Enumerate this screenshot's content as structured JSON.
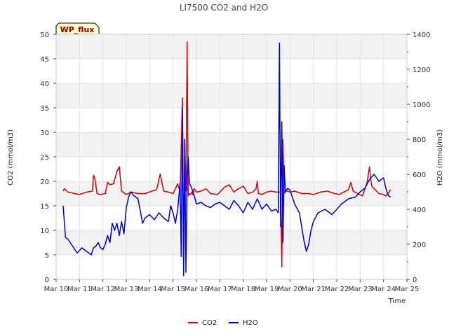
{
  "chart_data": {
    "type": "line",
    "title": "LI7500 CO2 and H2O",
    "badge": "WP_flux",
    "xlabel": "Time",
    "ylabel_left": "CO2 (mmol/m3)",
    "ylabel_right": "H2O (mmol/m3)",
    "ylim_left": [
      0,
      50
    ],
    "ylim_right": [
      0,
      1400
    ],
    "xlim": [
      10,
      25
    ],
    "x_ticks": [
      10,
      11,
      12,
      13,
      14,
      15,
      16,
      17,
      18,
      19,
      20,
      21,
      22,
      23,
      24,
      25
    ],
    "x_tick_labels": [
      "Mar 10",
      "Mar 11",
      "Mar 12",
      "Mar 13",
      "Mar 14",
      "Mar 15",
      "Mar 16",
      "Mar 17",
      "Mar 18",
      "Mar 19",
      "Mar 20",
      "Mar 21",
      "Mar 22",
      "Mar 23",
      "Mar 24",
      "Mar 25"
    ],
    "y_ticks_left": [
      0,
      5,
      10,
      15,
      20,
      25,
      30,
      35,
      40,
      45,
      50
    ],
    "y_ticks_right": [
      0,
      200,
      400,
      600,
      800,
      1000,
      1200,
      1400
    ],
    "grid": true,
    "legend_position": "bottom-center",
    "series": [
      {
        "name": "CO2",
        "axis": "left",
        "color": "#dd0000",
        "x": [
          10.3,
          10.35,
          10.5,
          10.8,
          11.0,
          11.3,
          11.55,
          11.6,
          11.65,
          11.75,
          11.9,
          12.1,
          12.2,
          12.3,
          12.45,
          12.6,
          12.7,
          12.8,
          13.0,
          13.2,
          13.5,
          13.8,
          14.1,
          14.3,
          14.45,
          14.6,
          14.8,
          15.0,
          15.1,
          15.2,
          15.3,
          15.4,
          15.45,
          15.5,
          15.55,
          15.6,
          15.65,
          15.7,
          15.75,
          15.8,
          15.85,
          15.9,
          16.0,
          16.2,
          16.4,
          16.6,
          16.9,
          17.2,
          17.4,
          17.6,
          17.8,
          18.0,
          18.2,
          18.4,
          18.55,
          18.6,
          18.65,
          18.8,
          19.0,
          19.2,
          19.4,
          19.6,
          19.65,
          19.7,
          19.75,
          19.8,
          19.85,
          19.9,
          20.0,
          20.2,
          20.5,
          20.8,
          21.0,
          21.3,
          21.6,
          21.9,
          22.1,
          22.3,
          22.5,
          22.6,
          22.7,
          22.9,
          23.1,
          23.3,
          23.4,
          23.45,
          23.5,
          23.6,
          23.8,
          24.0,
          24.1,
          24.2,
          24.3
        ],
        "values": [
          18.0,
          18.5,
          17.8,
          17.5,
          17.3,
          17.8,
          18.0,
          21.2,
          20.8,
          17.5,
          17.3,
          17.5,
          19.8,
          19.3,
          19.5,
          22.0,
          23.0,
          18.0,
          17.3,
          17.8,
          17.5,
          17.5,
          18.0,
          18.3,
          21.5,
          18.0,
          17.8,
          17.5,
          18.5,
          19.5,
          17.8,
          37.0,
          5.0,
          24.5,
          18.0,
          48.5,
          17.0,
          17.5,
          17.3,
          17.8,
          17.2,
          18.5,
          17.8,
          18.0,
          18.5,
          17.5,
          17.3,
          18.8,
          19.3,
          17.8,
          18.5,
          19.0,
          17.5,
          17.8,
          18.5,
          20.0,
          17.5,
          17.3,
          17.8,
          18.0,
          17.8,
          17.8,
          2.5,
          28.5,
          17.5,
          17.8,
          18.0,
          18.0,
          17.8,
          18.0,
          17.5,
          17.5,
          17.3,
          17.8,
          18.0,
          17.5,
          17.3,
          17.8,
          18.3,
          19.8,
          18.0,
          17.5,
          17.0,
          19.8,
          23.0,
          20.5,
          19.0,
          18.5,
          17.5,
          17.3,
          17.0,
          17.5,
          18.3
        ]
      },
      {
        "name": "H2O",
        "axis": "right",
        "color": "#0000dd",
        "x": [
          10.3,
          10.4,
          10.5,
          10.7,
          10.9,
          11.1,
          11.3,
          11.5,
          11.6,
          11.7,
          11.8,
          11.9,
          12.0,
          12.1,
          12.2,
          12.3,
          12.4,
          12.5,
          12.6,
          12.7,
          12.8,
          12.9,
          13.0,
          13.1,
          13.2,
          13.3,
          13.5,
          13.7,
          13.8,
          14.0,
          14.2,
          14.4,
          14.6,
          14.8,
          14.9,
          15.0,
          15.1,
          15.2,
          15.3,
          15.35,
          15.4,
          15.45,
          15.5,
          15.55,
          15.6,
          15.65,
          15.7,
          15.8,
          15.9,
          16.0,
          16.2,
          16.4,
          16.6,
          16.8,
          17.0,
          17.2,
          17.4,
          17.6,
          17.8,
          18.0,
          18.2,
          18.4,
          18.6,
          18.8,
          19.0,
          19.2,
          19.4,
          19.5,
          19.55,
          19.6,
          19.65,
          19.7,
          19.75,
          19.8,
          19.9,
          20.0,
          20.2,
          20.4,
          20.5,
          20.6,
          20.7,
          20.8,
          20.9,
          21.0,
          21.2,
          21.5,
          21.8,
          22.0,
          22.2,
          22.5,
          22.8,
          23.0,
          23.2,
          23.4,
          23.6,
          23.8,
          24.0,
          24.1,
          24.2,
          24.3
        ],
        "values": [
          420,
          240,
          230,
          190,
          150,
          180,
          160,
          140,
          180,
          190,
          210,
          180,
          170,
          200,
          250,
          210,
          320,
          280,
          320,
          250,
          330,
          260,
          410,
          470,
          500,
          480,
          460,
          320,
          350,
          370,
          340,
          380,
          350,
          330,
          420,
          380,
          320,
          400,
          550,
          130,
          980,
          20,
          800,
          40,
          600,
          700,
          550,
          520,
          480,
          430,
          440,
          420,
          410,
          430,
          440,
          420,
          400,
          450,
          420,
          380,
          440,
          400,
          460,
          400,
          430,
          390,
          400,
          380,
          1350,
          300,
          900,
          210,
          650,
          500,
          520,
          510,
          430,
          380,
          300,
          220,
          160,
          200,
          280,
          330,
          380,
          400,
          370,
          400,
          430,
          460,
          470,
          500,
          520,
          570,
          600,
          560,
          580,
          520,
          480,
          470
        ]
      }
    ]
  }
}
